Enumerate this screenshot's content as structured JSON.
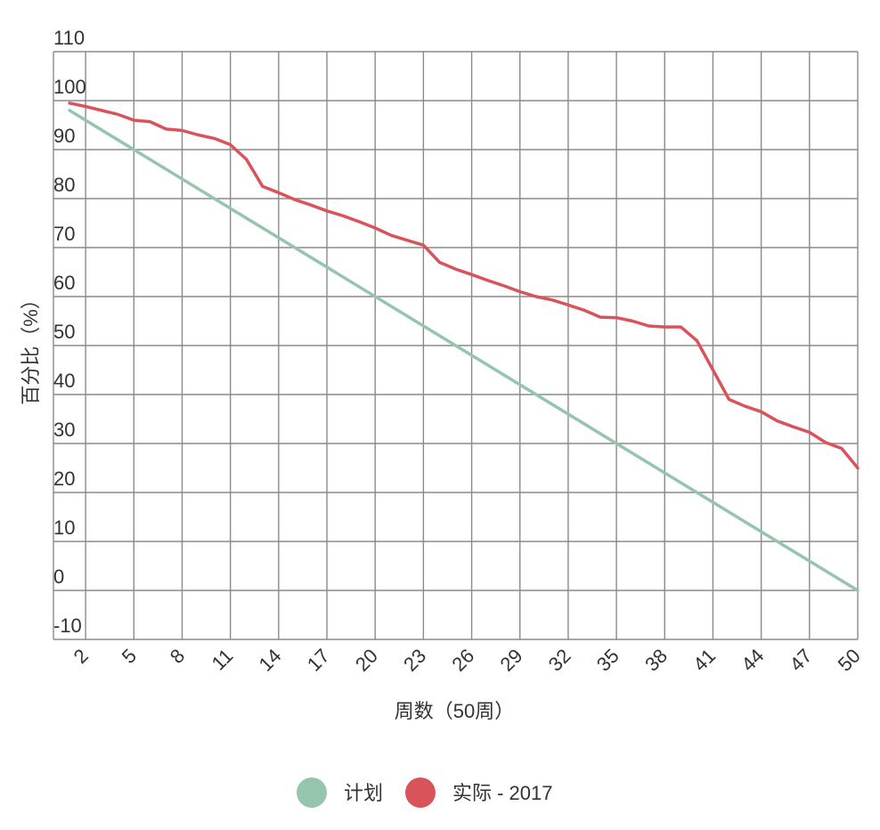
{
  "chart_data": {
    "type": "line",
    "xlabel": "周数（50周）",
    "ylabel": "百分比（%）",
    "ylim": [
      -10,
      110
    ],
    "yticks": [
      -10,
      0,
      10,
      20,
      30,
      40,
      50,
      60,
      70,
      80,
      90,
      100,
      110
    ],
    "xlim": [
      0,
      50
    ],
    "xticks": [
      2,
      5,
      8,
      11,
      14,
      17,
      20,
      23,
      26,
      29,
      32,
      35,
      38,
      41,
      44,
      47,
      50
    ],
    "grid": true,
    "legend_position": "bottom",
    "series": [
      {
        "name": "计划",
        "color": "#95c6ad",
        "points": [
          [
            1,
            98
          ],
          [
            50,
            0
          ]
        ]
      },
      {
        "name": "实际 - 2017",
        "color": "#d9545a",
        "points": [
          [
            1,
            99.5
          ],
          [
            2,
            98.8
          ],
          [
            3,
            98
          ],
          [
            4,
            97.2
          ],
          [
            5,
            96
          ],
          [
            6,
            95.7
          ],
          [
            7,
            94.2
          ],
          [
            8,
            93.9
          ],
          [
            9,
            93
          ],
          [
            10,
            92.3
          ],
          [
            11,
            91
          ],
          [
            12,
            88
          ],
          [
            13,
            82.5
          ],
          [
            14,
            81.2
          ],
          [
            15,
            79.8
          ],
          [
            16,
            78.7
          ],
          [
            17,
            77.5
          ],
          [
            18,
            76.5
          ],
          [
            19,
            75.3
          ],
          [
            20,
            74
          ],
          [
            21,
            72.5
          ],
          [
            22,
            71.5
          ],
          [
            23,
            70.5
          ],
          [
            24,
            67
          ],
          [
            25,
            65.6
          ],
          [
            26,
            64.5
          ],
          [
            27,
            63.3
          ],
          [
            28,
            62.2
          ],
          [
            29,
            61
          ],
          [
            30,
            60
          ],
          [
            31,
            59.3
          ],
          [
            32,
            58.3
          ],
          [
            33,
            57.2
          ],
          [
            34,
            55.8
          ],
          [
            35,
            55.7
          ],
          [
            36,
            55
          ],
          [
            37,
            54
          ],
          [
            38,
            53.8
          ],
          [
            39,
            53.8
          ],
          [
            40,
            51
          ],
          [
            41,
            45
          ],
          [
            42,
            39
          ],
          [
            43,
            37.6
          ],
          [
            44,
            36.5
          ],
          [
            45,
            34.6
          ],
          [
            46,
            33.4
          ],
          [
            47,
            32.3
          ],
          [
            48,
            30.2
          ],
          [
            49,
            29
          ],
          [
            50,
            25
          ]
        ]
      }
    ]
  }
}
